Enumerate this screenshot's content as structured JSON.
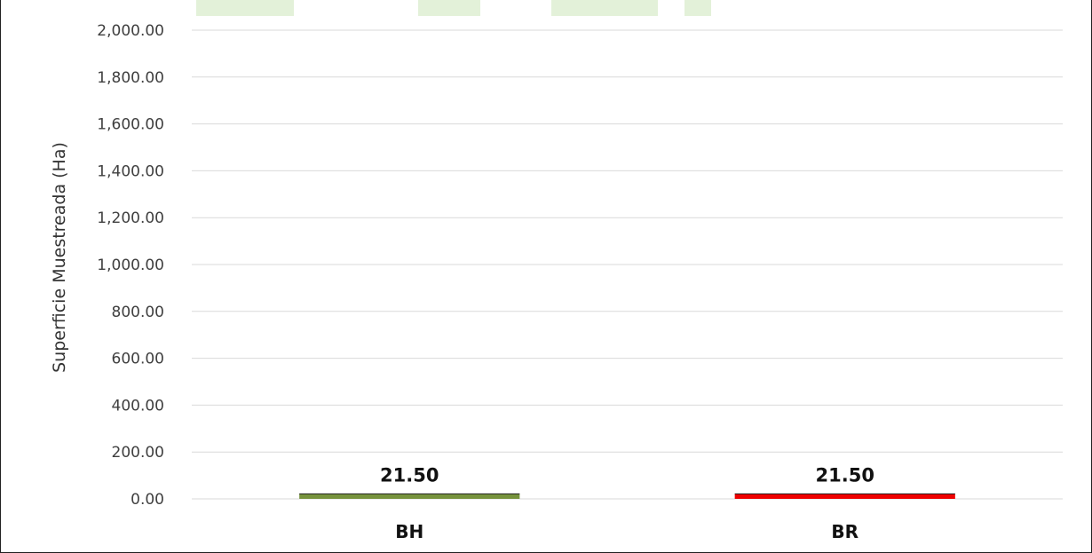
{
  "chart_data": {
    "type": "bar",
    "title": "",
    "xlabel": "",
    "ylabel": "Superficie Muestreada (Ha)",
    "categories": [
      "BH",
      "BR"
    ],
    "values": [
      21.5,
      21.5
    ],
    "value_labels": [
      "21.50",
      "21.50"
    ],
    "colors": [
      "#76923c",
      "#ee0000"
    ],
    "ylim": [
      0,
      2000
    ],
    "yticks": [
      0,
      200,
      400,
      600,
      800,
      1000,
      1200,
      1400,
      1600,
      1800,
      2000
    ],
    "ytick_labels": [
      "0.00",
      "200.00",
      "400.00",
      "600.00",
      "800.00",
      "1,000.00",
      "1,200.00",
      "1,400.00",
      "1,600.00",
      "1,800.00",
      "2,000.00"
    ],
    "grid": true,
    "legend": "none"
  }
}
